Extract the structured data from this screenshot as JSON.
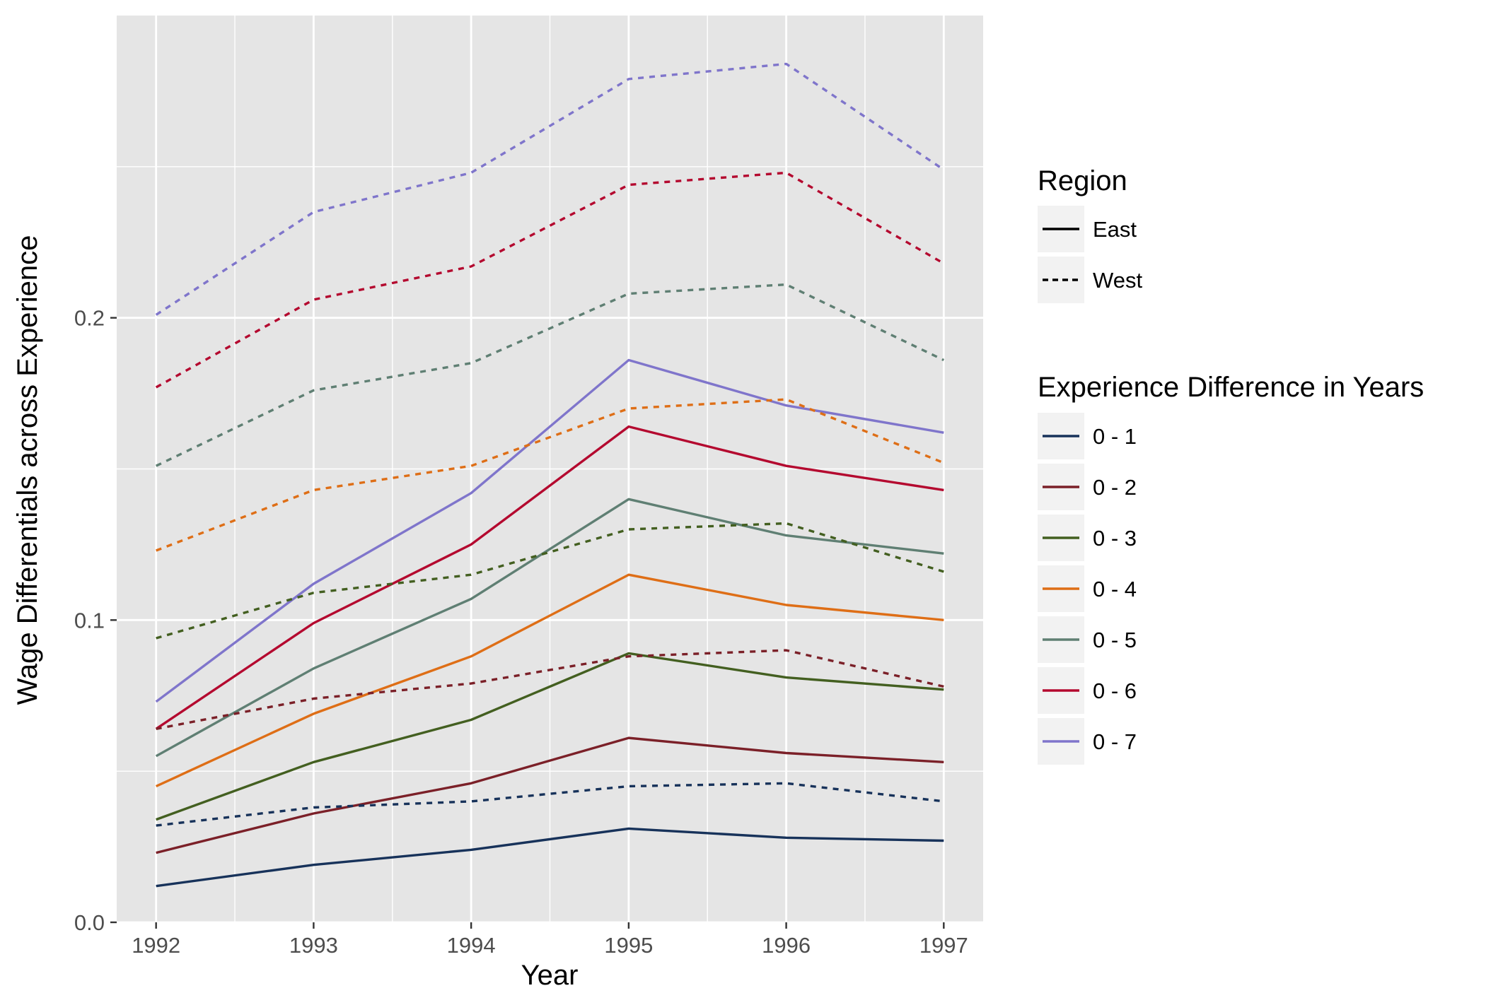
{
  "chart_data": {
    "type": "line",
    "title": "",
    "xlabel": "Year",
    "ylabel": "Wage Differentials across Experience",
    "x": [
      1992,
      1993,
      1994,
      1995,
      1996,
      1997
    ],
    "x_tick_labels": [
      "1992",
      "1993",
      "1994",
      "1995",
      "1996",
      "1997"
    ],
    "xlim": [
      1991.75,
      1997.25
    ],
    "ylim": [
      0.0,
      0.3
    ],
    "y_ticks": [
      0.0,
      0.1,
      0.2
    ],
    "y_tick_labels": [
      "0.0",
      "0.1",
      "0.2"
    ],
    "grid": true,
    "legend_position": "right",
    "panel_background": "#E5E5E5",
    "grid_color": "#FFFFFF",
    "legends": {
      "region": {
        "title": "Region",
        "entries": [
          {
            "label": "East",
            "linetype": "solid"
          },
          {
            "label": "West",
            "linetype": "dashed"
          }
        ]
      },
      "experience": {
        "title": "Experience Difference in Years",
        "entries": [
          {
            "label": "0 - 1",
            "color": "#17325A"
          },
          {
            "label": "0 - 2",
            "color": "#7B2028"
          },
          {
            "label": "0 - 3",
            "color": "#435F20"
          },
          {
            "label": "0 - 4",
            "color": "#DE6E16"
          },
          {
            "label": "0 - 5",
            "color": "#5F7F73"
          },
          {
            "label": "0 - 6",
            "color": "#B4092F"
          },
          {
            "label": "0 - 7",
            "color": "#7F75CB"
          }
        ]
      }
    },
    "series": [
      {
        "experience": "0 - 1",
        "region": "East",
        "color": "#17325A",
        "linetype": "solid",
        "values": [
          0.012,
          0.019,
          0.024,
          0.031,
          0.028,
          0.027
        ]
      },
      {
        "experience": "0 - 2",
        "region": "East",
        "color": "#7B2028",
        "linetype": "solid",
        "values": [
          0.023,
          0.036,
          0.046,
          0.061,
          0.056,
          0.053
        ]
      },
      {
        "experience": "0 - 3",
        "region": "East",
        "color": "#435F20",
        "linetype": "solid",
        "values": [
          0.034,
          0.053,
          0.067,
          0.089,
          0.081,
          0.077
        ]
      },
      {
        "experience": "0 - 4",
        "region": "East",
        "color": "#DE6E16",
        "linetype": "solid",
        "values": [
          0.045,
          0.069,
          0.088,
          0.115,
          0.105,
          0.1
        ]
      },
      {
        "experience": "0 - 5",
        "region": "East",
        "color": "#5F7F73",
        "linetype": "solid",
        "values": [
          0.055,
          0.084,
          0.107,
          0.14,
          0.128,
          0.122
        ]
      },
      {
        "experience": "0 - 6",
        "region": "East",
        "color": "#B4092F",
        "linetype": "solid",
        "values": [
          0.064,
          0.099,
          0.125,
          0.164,
          0.151,
          0.143
        ]
      },
      {
        "experience": "0 - 7",
        "region": "East",
        "color": "#7F75CB",
        "linetype": "solid",
        "values": [
          0.073,
          0.112,
          0.142,
          0.186,
          0.171,
          0.162
        ]
      },
      {
        "experience": "0 - 1",
        "region": "West",
        "color": "#17325A",
        "linetype": "dashed",
        "values": [
          0.032,
          0.038,
          0.04,
          0.045,
          0.046,
          0.04
        ]
      },
      {
        "experience": "0 - 2",
        "region": "West",
        "color": "#7B2028",
        "linetype": "dashed",
        "values": [
          0.064,
          0.074,
          0.079,
          0.088,
          0.09,
          0.078
        ]
      },
      {
        "experience": "0 - 3",
        "region": "West",
        "color": "#435F20",
        "linetype": "dashed",
        "values": [
          0.094,
          0.109,
          0.115,
          0.13,
          0.132,
          0.116
        ]
      },
      {
        "experience": "0 - 4",
        "region": "West",
        "color": "#DE6E16",
        "linetype": "dashed",
        "values": [
          0.123,
          0.143,
          0.151,
          0.17,
          0.173,
          0.152
        ]
      },
      {
        "experience": "0 - 5",
        "region": "West",
        "color": "#5F7F73",
        "linetype": "dashed",
        "values": [
          0.151,
          0.176,
          0.185,
          0.208,
          0.211,
          0.186
        ]
      },
      {
        "experience": "0 - 6",
        "region": "West",
        "color": "#B4092F",
        "linetype": "dashed",
        "values": [
          0.177,
          0.206,
          0.217,
          0.244,
          0.248,
          0.218
        ]
      },
      {
        "experience": "0 - 7",
        "region": "West",
        "color": "#7F75CB",
        "linetype": "dashed",
        "values": [
          0.201,
          0.235,
          0.248,
          0.279,
          0.284,
          0.249
        ]
      }
    ]
  }
}
